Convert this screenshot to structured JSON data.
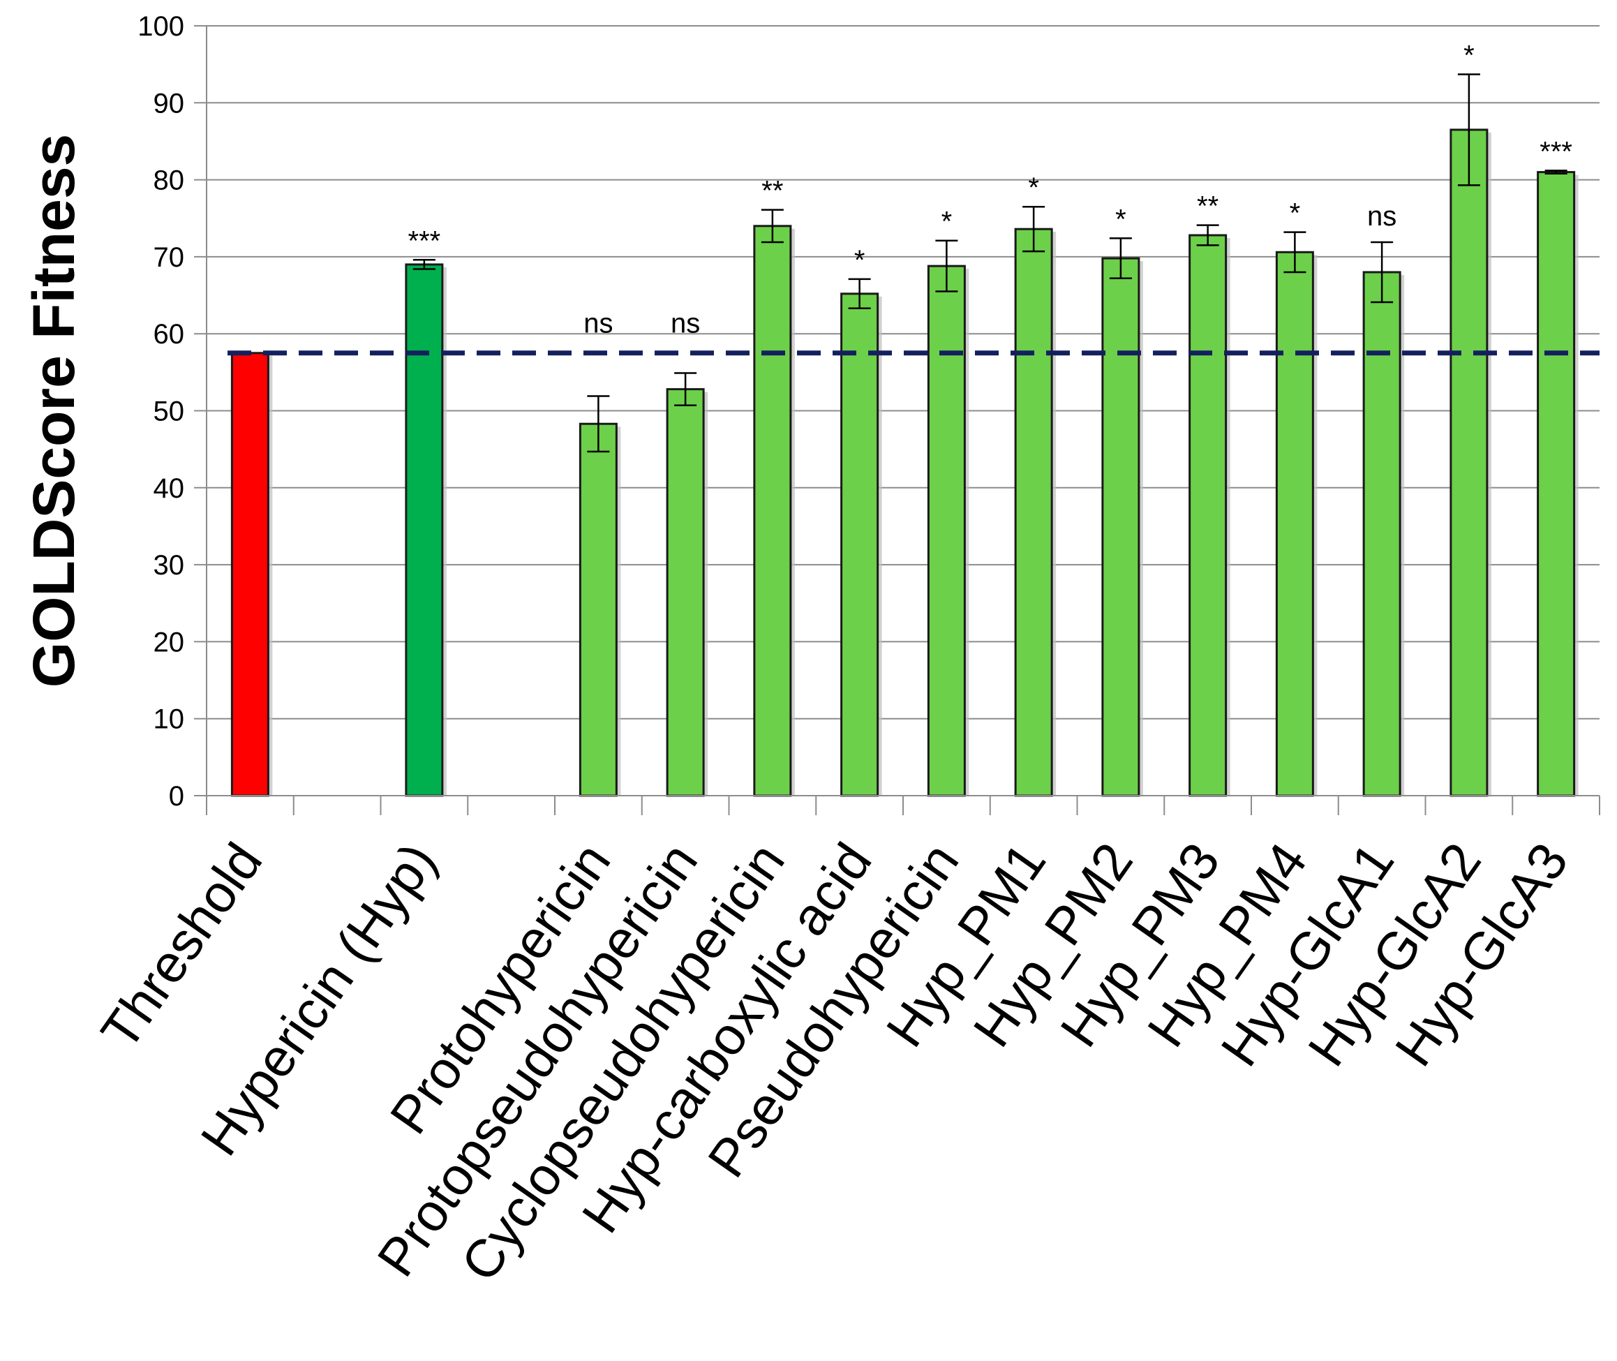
{
  "chart_data": {
    "type": "bar",
    "title": "",
    "xlabel": "",
    "ylabel": "GOLDScore Fitness",
    "ylim": [
      0,
      100
    ],
    "yticks": [
      0,
      10,
      20,
      30,
      40,
      50,
      60,
      70,
      80,
      90,
      100
    ],
    "grid": true,
    "threshold_line": {
      "value": 57.5,
      "style": "dashed",
      "color": "#14205e"
    },
    "categories": [
      "Threshold",
      "Hypericin (Hyp)",
      "Protohypericin",
      "Protopseudohypericin",
      "Cyclopseudohypericin",
      "Hyp-carboxylic acid",
      "Pseudohypericin",
      "Hyp_PM1",
      "Hyp_PM2",
      "Hyp_PM3",
      "Hyp_PM4",
      "Hyp-GlcA1",
      "Hyp-GlcA2",
      "Hyp-GlcA3"
    ],
    "slots": [
      0,
      2,
      4,
      5,
      6,
      7,
      8,
      9,
      10,
      11,
      12,
      13,
      14,
      15
    ],
    "slot_count": 16,
    "values": [
      57.5,
      69,
      48.3,
      52.8,
      74,
      65.2,
      68.8,
      73.6,
      69.8,
      72.8,
      70.6,
      68,
      86.5,
      81
    ],
    "errors": [
      0,
      0.6,
      3.6,
      2.1,
      2.1,
      1.9,
      3.3,
      2.9,
      2.6,
      1.3,
      2.6,
      3.9,
      7.2,
      0.2
    ],
    "significance": [
      "",
      "***",
      "ns",
      "ns",
      "**",
      "*",
      "*",
      "*",
      "*",
      "**",
      "*",
      "ns",
      "*",
      "***"
    ],
    "colors": [
      "#ff0000",
      "#00b04f",
      "#6dd04a",
      "#6dd04a",
      "#6dd04a",
      "#6dd04a",
      "#6dd04a",
      "#6dd04a",
      "#6dd04a",
      "#6dd04a",
      "#6dd04a",
      "#6dd04a",
      "#6dd04a",
      "#6dd04a"
    ]
  }
}
